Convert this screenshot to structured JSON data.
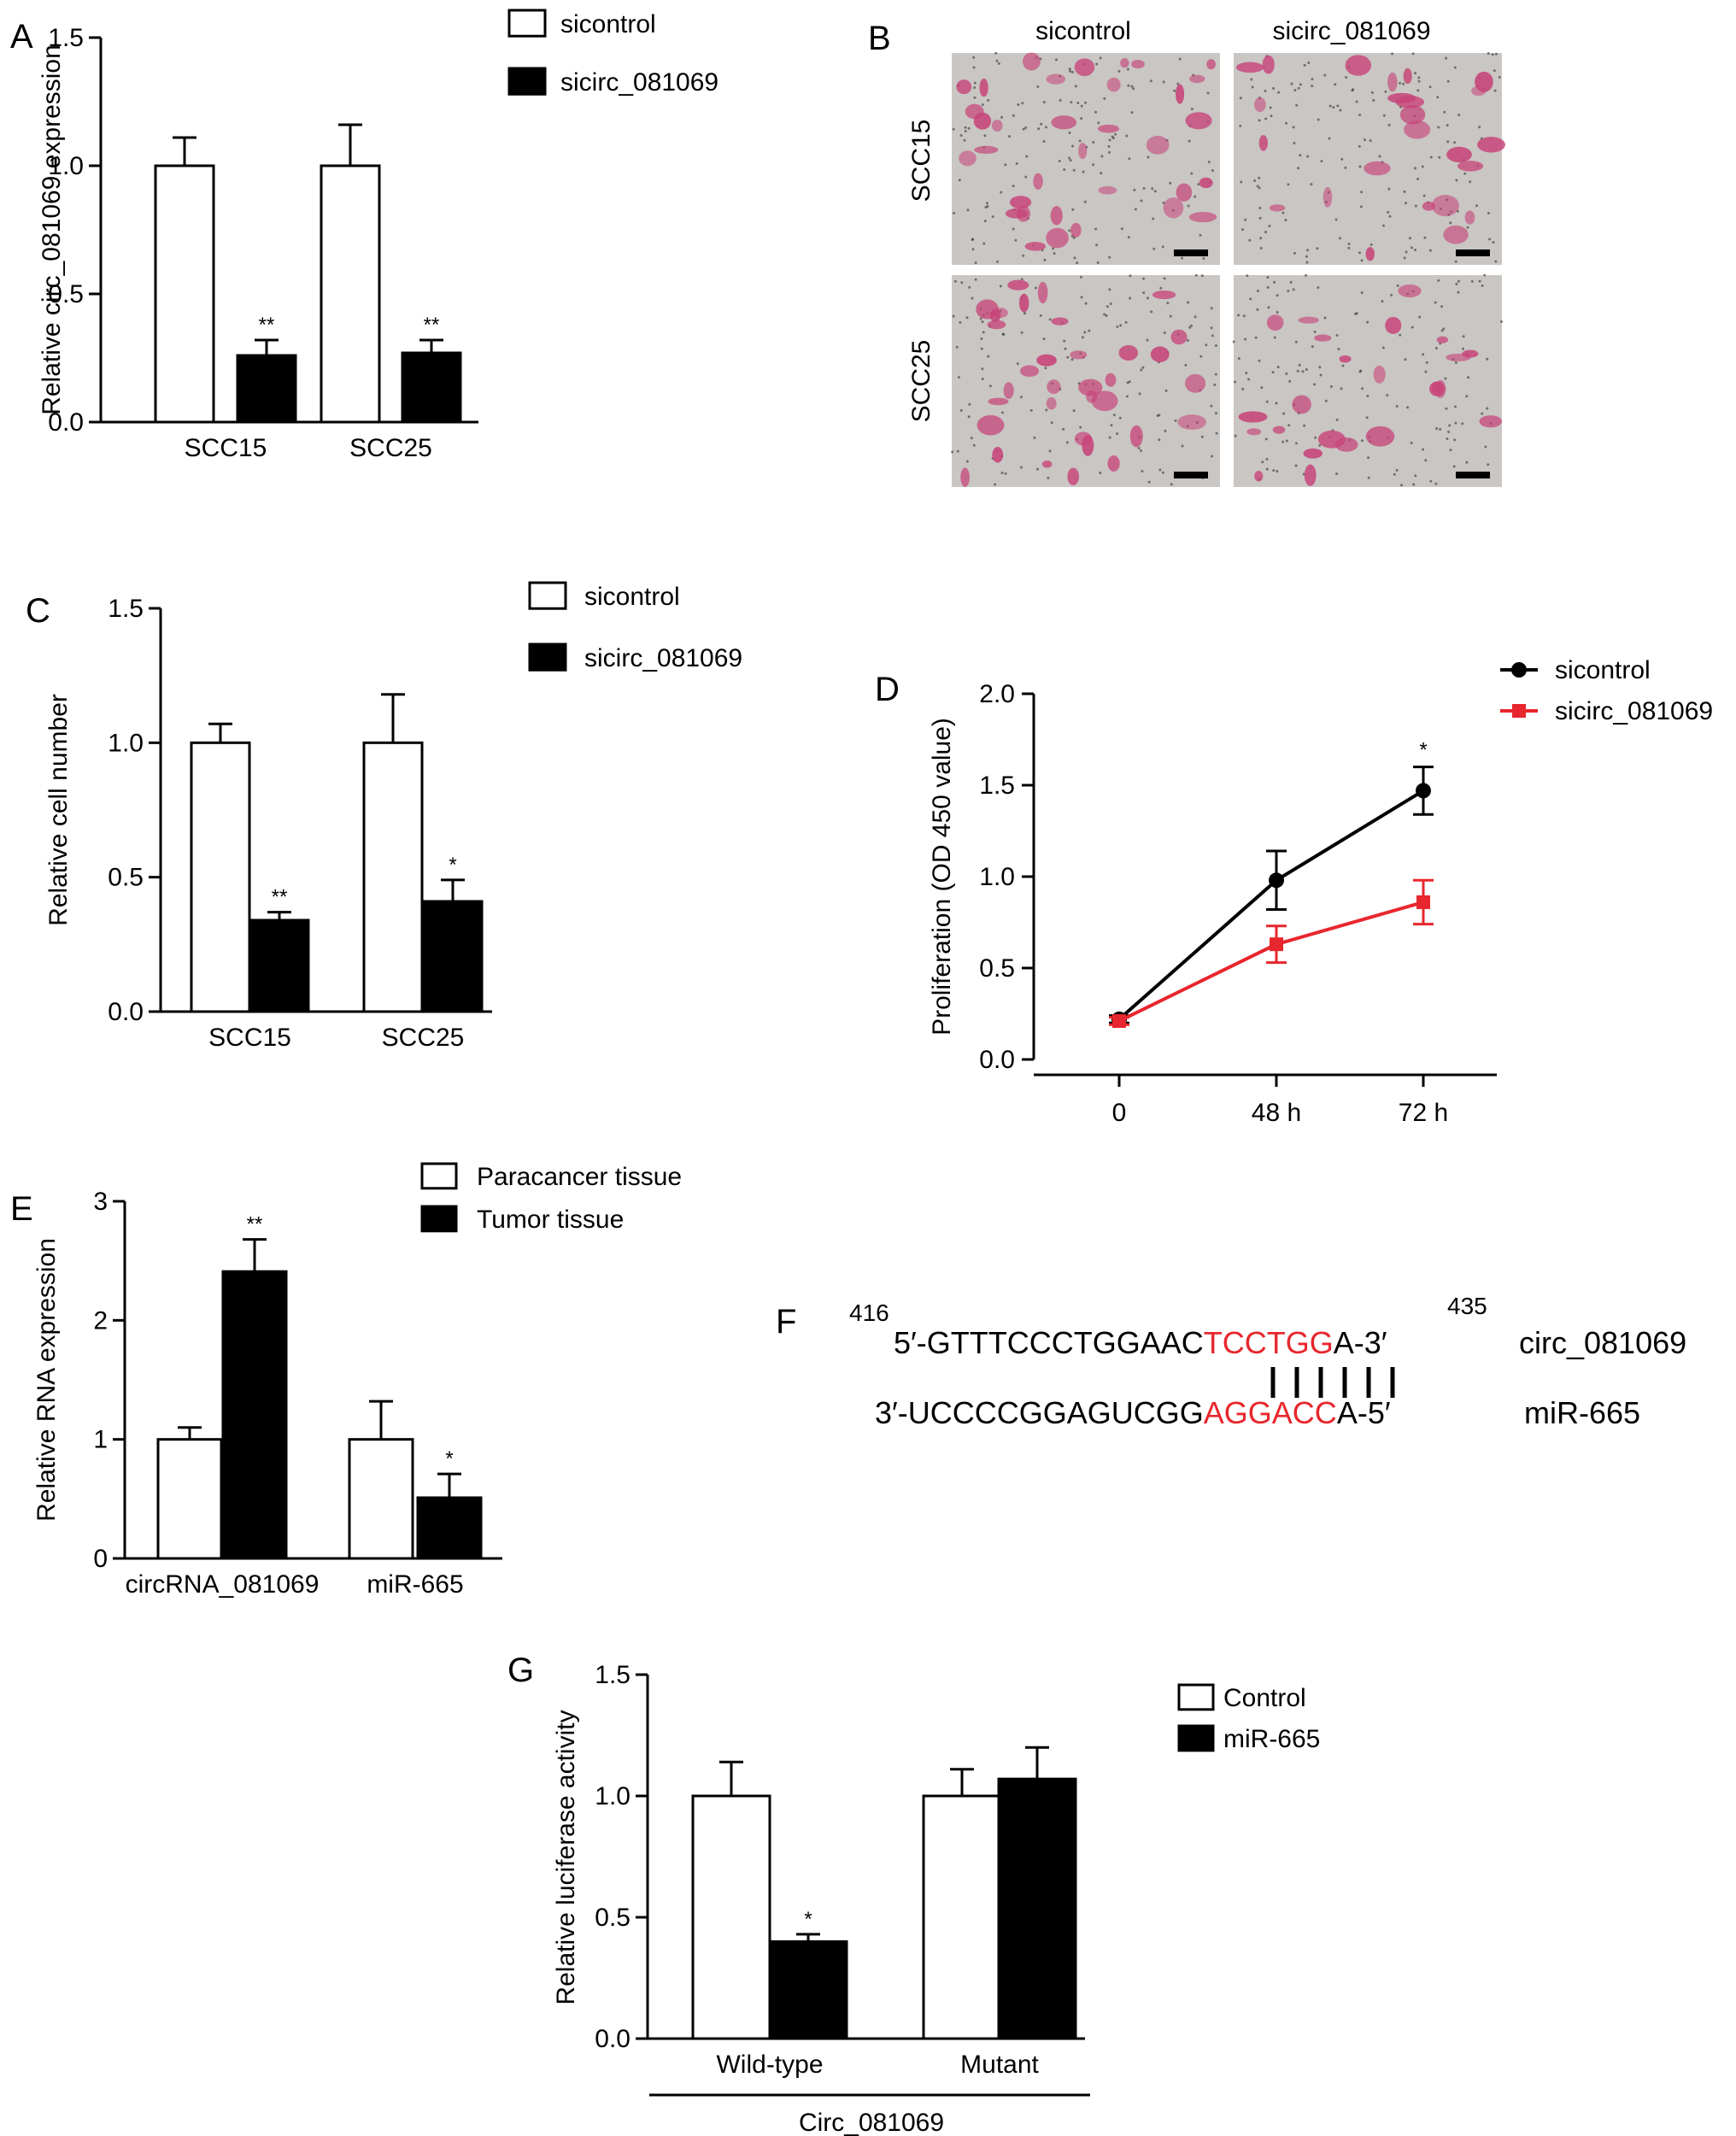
{
  "panels": {
    "A": "A",
    "B": "B",
    "C": "C",
    "D": "D",
    "E": "E",
    "F": "F",
    "G": "G"
  },
  "chart_data": [
    {
      "id": "A",
      "type": "bar",
      "ylabel": "Relative circ_081069 expression",
      "categories": [
        "SCC15",
        "SCC25"
      ],
      "ylim": [
        0,
        1.5
      ],
      "yticks": [
        "0.0",
        "0.5",
        "1.0",
        "1.5"
      ],
      "ytick_values": [
        0,
        0.5,
        1.0,
        1.5
      ],
      "series": [
        {
          "name": "sicontrol",
          "values": [
            1.0,
            1.0
          ],
          "errors": [
            0.11,
            0.16
          ],
          "fill": "#ffffff"
        },
        {
          "name": "sicirc_081069",
          "values": [
            0.26,
            0.27
          ],
          "errors": [
            0.06,
            0.05
          ],
          "fill": "#000000"
        }
      ],
      "annotations": [
        "**",
        "**"
      ],
      "legend_placement": "top-right"
    },
    {
      "id": "C",
      "type": "bar",
      "ylabel": "Relative cell number",
      "categories": [
        "SCC15",
        "SCC25"
      ],
      "ylim": [
        0,
        1.5
      ],
      "yticks": [
        "0.0",
        "0.5",
        "1.0",
        "1.5"
      ],
      "ytick_values": [
        0,
        0.5,
        1.0,
        1.5
      ],
      "series": [
        {
          "name": "sicontrol",
          "values": [
            1.0,
            1.0
          ],
          "errors": [
            0.07,
            0.18
          ],
          "fill": "#ffffff"
        },
        {
          "name": "sicirc_081069",
          "values": [
            0.34,
            0.41
          ],
          "errors": [
            0.03,
            0.08
          ],
          "fill": "#000000"
        }
      ],
      "annotations": [
        "**",
        "*"
      ],
      "legend_placement": "top-right"
    },
    {
      "id": "D",
      "type": "line",
      "ylabel": "Proliferation (OD 450 value)",
      "x": [
        "0",
        "48 h",
        "72 h"
      ],
      "ylim": [
        0,
        2.0
      ],
      "yticks": [
        "0.0",
        "0.5",
        "1.0",
        "1.5",
        "2.0"
      ],
      "ytick_values": [
        0,
        0.5,
        1.0,
        1.5,
        2.0
      ],
      "series": [
        {
          "name": "sicontrol",
          "values": [
            0.22,
            0.98,
            1.47
          ],
          "errors": [
            0.02,
            0.16,
            0.13
          ],
          "color": "#000000",
          "marker": "circle"
        },
        {
          "name": "sicirc_081069",
          "values": [
            0.21,
            0.63,
            0.86
          ],
          "errors": [
            0.02,
            0.1,
            0.12
          ],
          "color": "#e8262d",
          "marker": "square"
        }
      ],
      "annotations": [
        "",
        "",
        "*"
      ],
      "legend_placement": "top-right"
    },
    {
      "id": "E",
      "type": "bar",
      "ylabel": "Relative RNA expression",
      "categories": [
        "circRNA_081069",
        "miR-665"
      ],
      "ylim": [
        0,
        3
      ],
      "yticks": [
        "0",
        "1",
        "2",
        "3"
      ],
      "ytick_values": [
        0,
        1,
        2,
        3
      ],
      "series": [
        {
          "name": "Paracancer tissue",
          "values": [
            1.0,
            1.0
          ],
          "errors": [
            0.1,
            0.32
          ],
          "fill": "#ffffff"
        },
        {
          "name": "Tumor tissue",
          "values": [
            2.41,
            0.51
          ],
          "errors": [
            0.27,
            0.2
          ],
          "fill": "#000000"
        }
      ],
      "annotations": [
        "**",
        "*"
      ],
      "legend_placement": "top-right"
    },
    {
      "id": "G",
      "type": "bar",
      "ylabel": "Relative luciferase activity",
      "categories": [
        "Wild-type",
        "Mutant"
      ],
      "group_label": "Circ_081069",
      "ylim": [
        0,
        1.5
      ],
      "yticks": [
        "0.0",
        "0.5",
        "1.0",
        "1.5"
      ],
      "ytick_values": [
        0,
        0.5,
        1.0,
        1.5
      ],
      "series": [
        {
          "name": "Control",
          "values": [
            1.0,
            1.0
          ],
          "errors": [
            0.14,
            0.11
          ],
          "fill": "#ffffff"
        },
        {
          "name": "miR-665",
          "values": [
            0.4,
            1.07
          ],
          "errors": [
            0.03,
            0.13
          ],
          "fill": "#000000"
        }
      ],
      "annotations": [
        "*",
        ""
      ],
      "legend_placement": "top-right"
    }
  ],
  "panel_b": {
    "columns": [
      "sicontrol",
      "sicirc_081069"
    ],
    "rows": [
      "SCC15",
      "SCC25"
    ],
    "background": "#c9c6c3",
    "stain_color": "#c7457a"
  },
  "panel_f": {
    "start_pos": "416",
    "end_pos": "435",
    "top": {
      "prefix": "5′-GTTTCCCTGGAAC",
      "highlight": "TCCTGG",
      "suffix": "A-3′",
      "label": "circ_081069"
    },
    "bottom": {
      "prefix": "3′-UCCCCGGAGUCGG",
      "highlight": "AGGACC",
      "suffix": "A-5′",
      "label": "miR-665"
    },
    "pairs": 6,
    "highlight_color": "#e8262d"
  }
}
